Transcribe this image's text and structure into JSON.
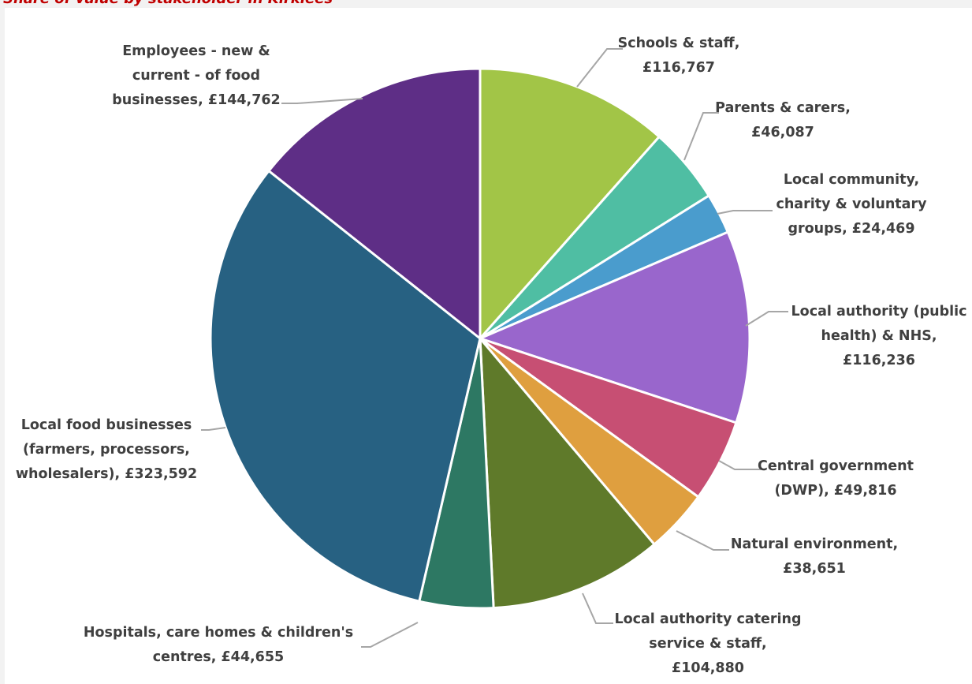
{
  "chart_data": {
    "type": "pie",
    "title": "Share of value by stakeholder in Kirklees",
    "start_angle_deg": 0,
    "direction": "clockwise",
    "slices": [
      {
        "label": "Schools & staff,\n£116,767",
        "value": 116767,
        "color": "#a2c547"
      },
      {
        "label": "Parents & carers,\n£46,087",
        "value": 46087,
        "color": "#4fbea3"
      },
      {
        "label": "Local community,\ncharity & voluntary\ngroups,  £24,469",
        "value": 24469,
        "color": "#4a9ccd"
      },
      {
        "label": "Local authority (public\nhealth) & NHS,\n£116,236",
        "value": 116236,
        "color": "#9966cc"
      },
      {
        "label": "Central government\n(DWP),  £49,816",
        "value": 49816,
        "color": "#c74f73"
      },
      {
        "label": "Natural environment,\n£38,651",
        "value": 38651,
        "color": "#df9f3f"
      },
      {
        "label": "Local authority catering\nservice & staff,\n£104,880",
        "value": 104880,
        "color": "#5f7a2a"
      },
      {
        "label": "Hospitals, care homes & children's\ncentres,  £44,655",
        "value": 44655,
        "color": "#2d7863"
      },
      {
        "label": "Local food businesses\n(farmers, processors,\nwholesalers),  £323,592",
        "value": 323592,
        "color": "#276182"
      },
      {
        "label": "Employees - new &\ncurrent - of food\nbusinesses,  £144,762",
        "value": 144762,
        "color": "#5e2e86"
      }
    ]
  }
}
